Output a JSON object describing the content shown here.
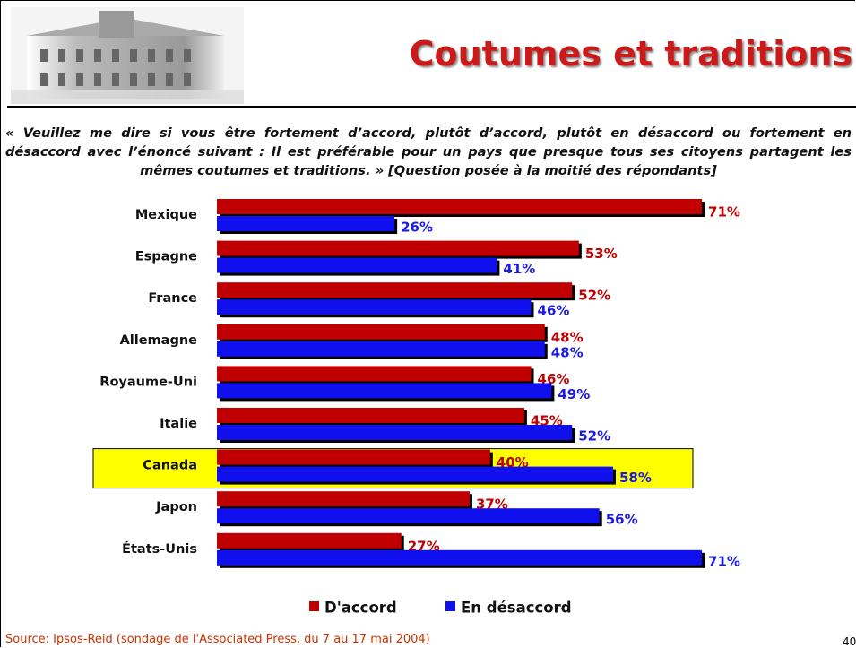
{
  "chart_data": {
    "type": "bar",
    "orientation": "horizontal",
    "title": "Coutumes et traditions",
    "subtitle": "« Veuillez me dire si vous être fortement d’accord, plutôt d’accord, plutôt en désaccord ou fortement en désaccord avec l’énoncé suivant : Il est préférable pour un pays que presque tous ses citoyens partagent les mêmes coutumes et traditions. » [Question posée à la moitié des répondants]",
    "categories": [
      "Mexique",
      "Espagne",
      "France",
      "Allemagne",
      "Royaume-Uni",
      "Italie",
      "Canada",
      "Japon",
      "États-Unis"
    ],
    "highlight": "Canada",
    "series": [
      {
        "name": "D'accord",
        "color": "#c00000",
        "label_color": "#c00000",
        "values": [
          71,
          53,
          52,
          48,
          46,
          45,
          40,
          37,
          27
        ],
        "value_labels": [
          "71%",
          "53%",
          "52%",
          "48%",
          "46%",
          "45%",
          "40%",
          "37%",
          "27%"
        ]
      },
      {
        "name": "En désaccord",
        "color": "#1010ee",
        "label_color": "#1a1ae6",
        "values": [
          26,
          41,
          46,
          48,
          49,
          52,
          58,
          56,
          71
        ],
        "value_labels": [
          "26%",
          "41%",
          "46%",
          "48%",
          "49%",
          "52%",
          "58%",
          "56%",
          "71%"
        ]
      }
    ],
    "legend": "bottom",
    "source": "Source: Ipsos-Reid (sondage de l'Associated Press, du 7 au 17 mai 2004)",
    "page_number": "40"
  }
}
